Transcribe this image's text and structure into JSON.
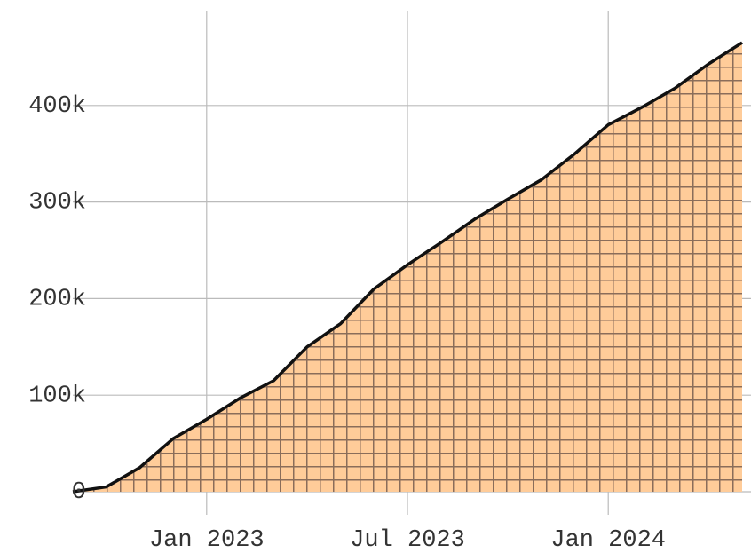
{
  "chart_data": {
    "type": "area",
    "x": [
      "2022-09",
      "2022-10",
      "2022-11",
      "2022-12",
      "2023-01",
      "2023-02",
      "2023-03",
      "2023-04",
      "2023-05",
      "2023-06",
      "2023-07",
      "2023-08",
      "2023-09",
      "2023-10",
      "2023-11",
      "2023-12",
      "2024-01",
      "2024-02",
      "2024-03",
      "2024-04",
      "2024-05"
    ],
    "values": [
      0,
      5000,
      25000,
      55000,
      75000,
      97000,
      115000,
      150000,
      174000,
      210000,
      235000,
      258000,
      282000,
      303000,
      323000,
      350000,
      380000,
      398000,
      418000,
      443000,
      465000
    ],
    "color": "#ffcc99",
    "line_color": "#111111",
    "xlim": [
      "2022-09",
      "2024-05"
    ],
    "xticks": [
      {
        "value": "2023-01",
        "label": "Jan 2023"
      },
      {
        "value": "2023-07",
        "label": "Jul 2023"
      },
      {
        "value": "2024-01",
        "label": "Jan 2024"
      }
    ],
    "ylim": [
      0,
      500000
    ],
    "yticks": [
      0,
      {
        "value": 100000,
        "label": "100k"
      },
      {
        "value": 200000,
        "label": "200k"
      },
      {
        "value": 300000,
        "label": "300k"
      },
      {
        "value": 400000,
        "label": "400k"
      }
    ],
    "grid": true
  }
}
